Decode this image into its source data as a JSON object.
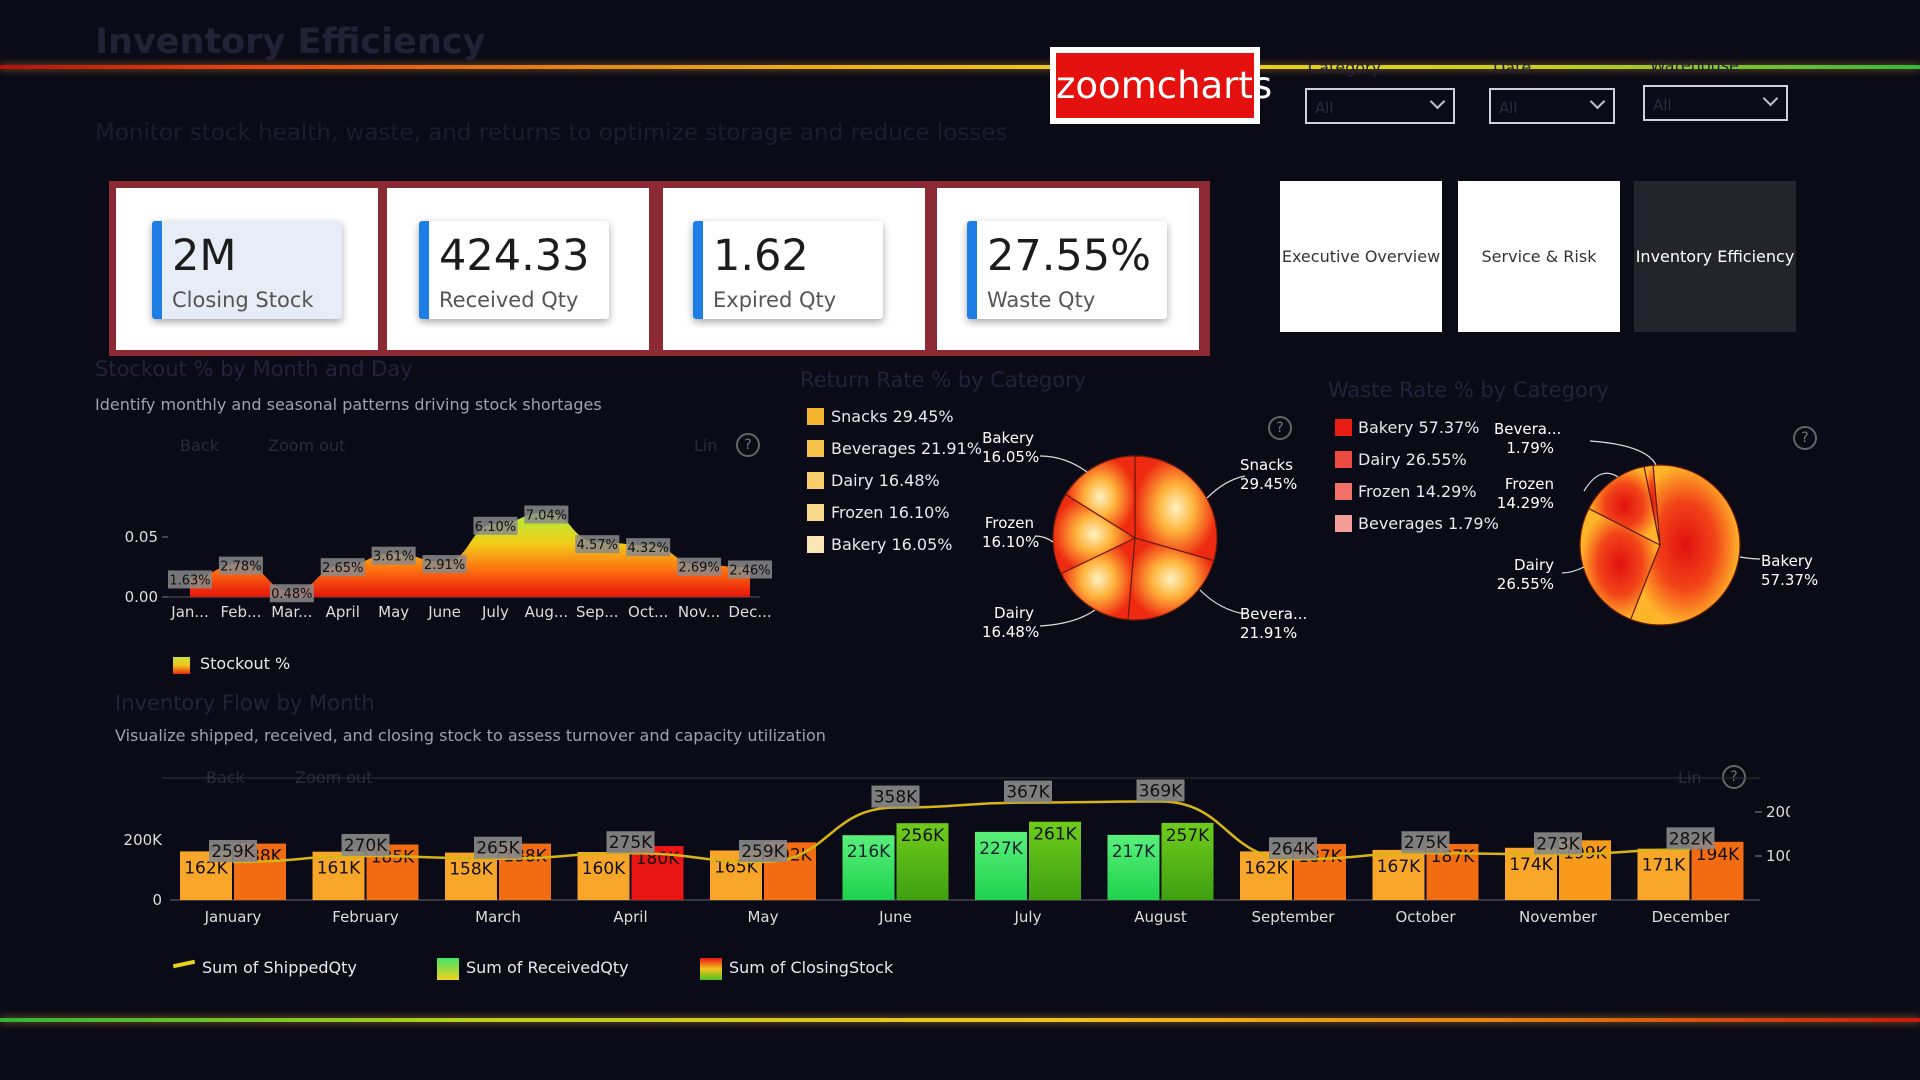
{
  "header": {
    "title": "Inventory Efficiency",
    "subtitle": "Monitor stock health, waste, and returns to optimize storage and reduce losses",
    "logo_text": "zoomcharts"
  },
  "filters": [
    {
      "label": "Category",
      "value": "All"
    },
    {
      "label": "Date",
      "value": "All"
    },
    {
      "label": "Warehouse",
      "value": "All"
    }
  ],
  "kpis": [
    {
      "value": "2M",
      "label": "Closing Stock"
    },
    {
      "value": "424.33",
      "label": "Received Qty"
    },
    {
      "value": "1.62",
      "label": "Expired Qty"
    },
    {
      "value": "27.55%",
      "label": "Waste Qty"
    }
  ],
  "nav": [
    {
      "label": "Executive Overview",
      "active": false
    },
    {
      "label": "Service & Risk",
      "active": false
    },
    {
      "label": "Inventory Efficiency",
      "active": true
    }
  ],
  "colors": {
    "accent": "#1d7fe6",
    "kpi_frame": "#8c2a34",
    "logo_red": "#e4110e"
  },
  "stockout": {
    "title": "Stockout % by Month and Day",
    "subtitle": "Identify monthly and seasonal patterns driving stock shortages",
    "back": "Back",
    "zoom_out": "Zoom out",
    "lin": "Lin",
    "legend": "Stockout %"
  },
  "returns": {
    "title": "Return Rate % by Category",
    "legend": [
      "Snacks 29.45%",
      "Beverages 21.91%",
      "Dairy 16.48%",
      "Frozen 16.10%",
      "Bakery 16.05%"
    ],
    "labels": [
      {
        "name": "Snacks",
        "pct": "29.45%"
      },
      {
        "name": "Bevera...",
        "pct": "21.91%"
      },
      {
        "name": "Dairy",
        "pct": "16.48%"
      },
      {
        "name": "Frozen",
        "pct": "16.10%"
      },
      {
        "name": "Bakery",
        "pct": "16.05%"
      }
    ]
  },
  "waste": {
    "title": "Waste Rate % by Category",
    "legend": [
      "Bakery 57.37%",
      "Dairy 26.55%",
      "Frozen 14.29%",
      "Beverages 1.79%"
    ],
    "labels": [
      {
        "name": "Bevera...",
        "pct": "1.79%"
      },
      {
        "name": "Frozen",
        "pct": "14.29%"
      },
      {
        "name": "Dairy",
        "pct": "26.55%"
      },
      {
        "name": "Bakery",
        "pct": "57.37%"
      }
    ]
  },
  "flow": {
    "title": "Inventory Flow by Month",
    "subtitle": "Visualize shipped, received, and closing stock to assess turnover and capacity utilization",
    "back": "Back",
    "zoom_out": "Zoom out",
    "lin": "Lin",
    "legend": [
      "Sum of ShippedQty",
      "Sum of ReceivedQty",
      "Sum of ClosingStock"
    ]
  },
  "chart_data": [
    {
      "type": "area",
      "title": "Stockout % by Month and Day",
      "categories": [
        "Jan...",
        "Feb...",
        "Mar...",
        "April",
        "May",
        "June",
        "July",
        "Aug...",
        "Sep...",
        "Oct...",
        "Nov...",
        "Dec..."
      ],
      "series": [
        {
          "name": "Stockout %",
          "values": [
            1.63,
            2.78,
            0.48,
            2.65,
            3.61,
            2.91,
            6.1,
            7.04,
            4.57,
            4.32,
            2.69,
            2.46
          ]
        }
      ],
      "data_labels": [
        "1.63%",
        "2.78%",
        "0.48%",
        "2.65%",
        "3.61%",
        "2.91%",
        "6.10%",
        "7.04%",
        "4.57%",
        "4.32%",
        "2.69%",
        "2.46%"
      ],
      "yticks": [
        "0.00",
        "0.05"
      ],
      "ylim": [
        0,
        0.075
      ]
    },
    {
      "type": "pie",
      "title": "Return Rate % by Category",
      "categories": [
        "Snacks",
        "Beverages",
        "Dairy",
        "Frozen",
        "Bakery"
      ],
      "values": [
        29.45,
        21.91,
        16.48,
        16.1,
        16.05
      ]
    },
    {
      "type": "pie",
      "title": "Waste Rate % by Category",
      "categories": [
        "Bakery",
        "Dairy",
        "Frozen",
        "Beverages"
      ],
      "values": [
        57.37,
        26.55,
        14.29,
        1.79
      ]
    },
    {
      "type": "bar",
      "title": "Inventory Flow by Month",
      "categories": [
        "January",
        "February",
        "March",
        "April",
        "May",
        "June",
        "July",
        "August",
        "September",
        "October",
        "November",
        "December"
      ],
      "series": [
        {
          "name": "Sum of ReceivedQty",
          "values": [
            162,
            161,
            158,
            160,
            165,
            216,
            227,
            217,
            162,
            167,
            174,
            171
          ],
          "labels": [
            "162K",
            "161K",
            "158K",
            "160K",
            "165K",
            "216K",
            "227K",
            "217K",
            "162K",
            "167K",
            "174K",
            "171K"
          ]
        },
        {
          "name": "Sum of ClosingStock",
          "values": [
            188,
            185,
            188,
            180,
            192,
            256,
            261,
            257,
            187,
            187,
            199,
            194
          ],
          "labels": [
            "188K",
            "185K",
            "188K",
            "180K",
            "192K",
            "256K",
            "261K",
            "257K",
            "187K",
            "187K",
            "199K",
            "194K"
          ]
        },
        {
          "name": "Sum of ShippedQty",
          "values": [
            259,
            270,
            265,
            275,
            259,
            358,
            367,
            369,
            264,
            275,
            273,
            282
          ],
          "labels": [
            "259K",
            "270K",
            "265K",
            "275K",
            "259K",
            "358K",
            "367K",
            "369K",
            "264K",
            "275K",
            "273K",
            "282K"
          ]
        }
      ],
      "yticks_left": [
        "0",
        "200K"
      ],
      "yticks_right": [
        "100.00",
        "200.00"
      ]
    }
  ]
}
